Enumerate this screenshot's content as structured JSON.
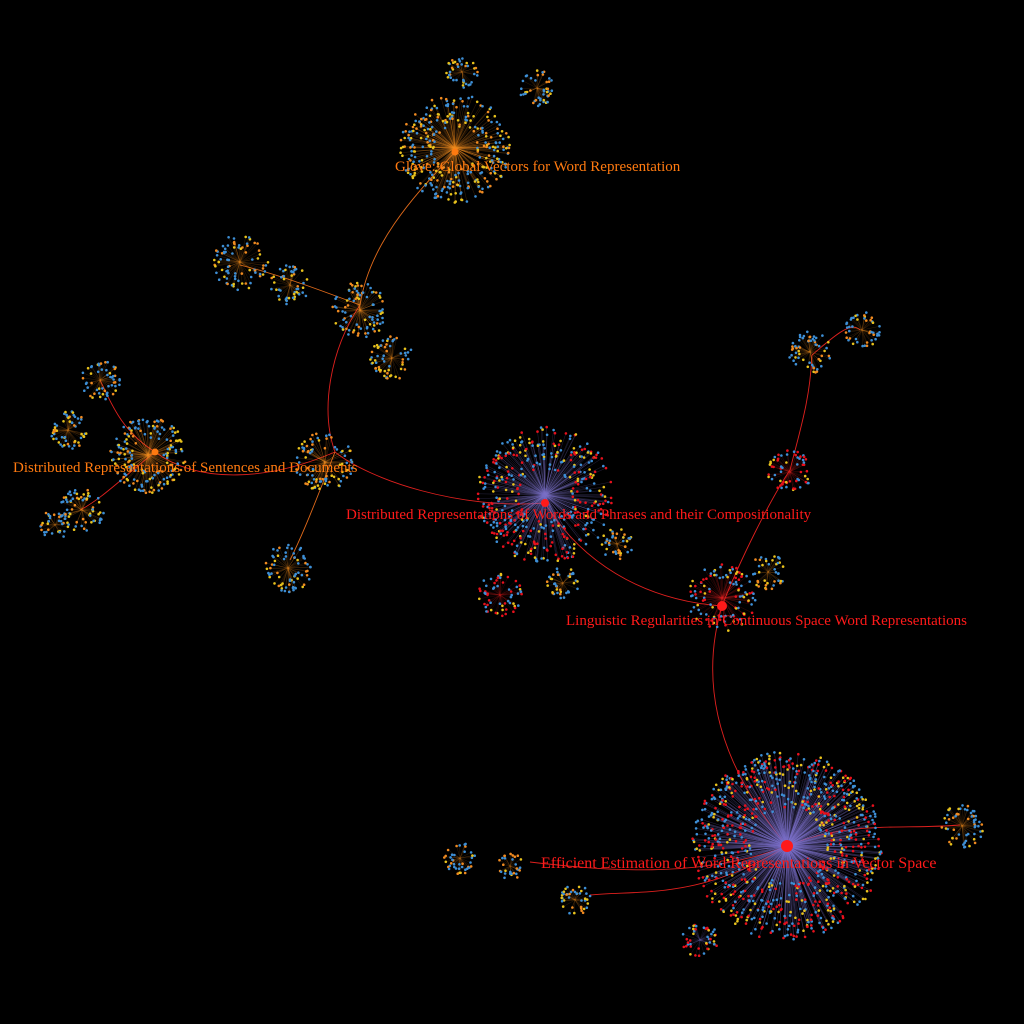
{
  "colors": {
    "background": "#000000",
    "edge_red": "#e0201e",
    "edge_orange": "#e06a1a",
    "node_blue": "#3d8fd6",
    "node_yellow": "#e8c21c",
    "node_orange": "#f08a20",
    "node_red": "#e8101c",
    "hub_fill": "#7a70c8",
    "label_red": "#ff1a1a",
    "label_orange": "#ff7a10"
  },
  "nodes": {
    "glove": {
      "label": "Glove: Global Vectors for Word Representation",
      "color_key": "label_orange"
    },
    "sentences": {
      "label": "Distributed Representations of Sentences and Documents",
      "color_key": "label_orange"
    },
    "phrases": {
      "label": "Distributed Representations of Words and Phrases and their Compositionality",
      "color_key": "label_red"
    },
    "linguistic": {
      "label": "Linguistic Regularities in Continuous Space Word Representations",
      "color_key": "label_red"
    },
    "efficient": {
      "label": "Efficient Estimation of Word Representations in Vector Space",
      "color_key": "label_red"
    }
  }
}
